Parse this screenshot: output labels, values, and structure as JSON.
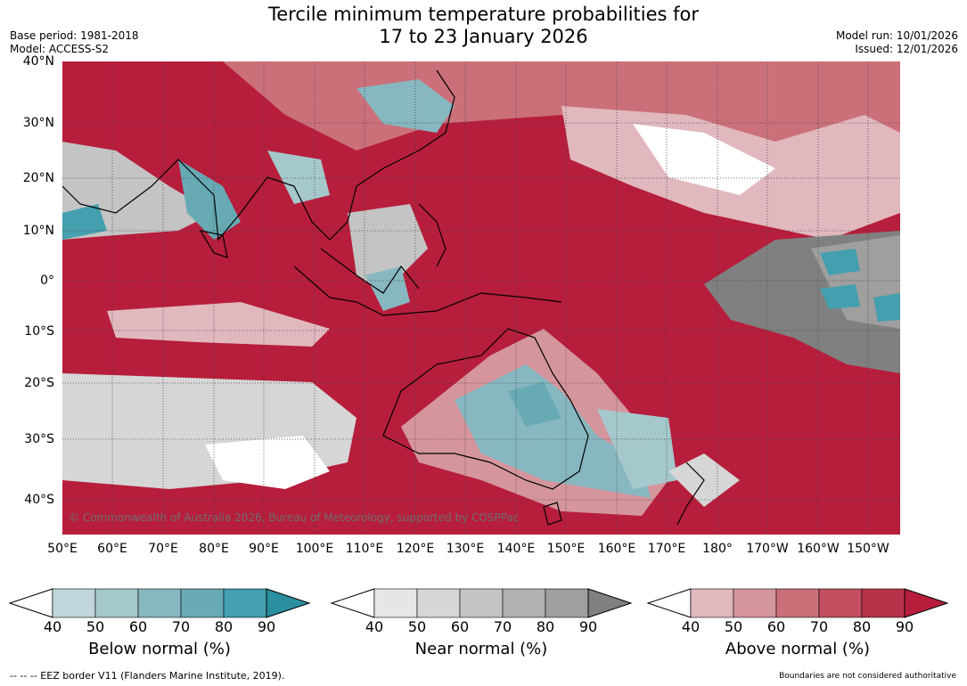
{
  "title_line1": "Tercile minimum temperature probabilities for",
  "title_line2": "17 to 23 January 2026",
  "base_period": "Base period: 1981-2018",
  "model": "Model: ACCESS-S2",
  "model_run": "Model run: 10/01/2026",
  "issued": "Issued: 12/01/2026",
  "copyright": "© Commonwealth of Australia 2026, Bureau of Meteorology, supported by COSPPac",
  "lat_labels": [
    "40°N",
    "30°N",
    "20°N",
    "10°N",
    "0°",
    "10°S",
    "20°S",
    "30°S",
    "40°S"
  ],
  "lon_labels": [
    "50°E",
    "60°E",
    "70°E",
    "80°E",
    "90°E",
    "100°E",
    "110°E",
    "120°E",
    "130°E",
    "140°E",
    "150°E",
    "160°E",
    "170°E",
    "180°",
    "170°W",
    "160°W",
    "150°W"
  ],
  "legends": [
    {
      "title": "Below normal (%)",
      "ticks": [
        "40",
        "50",
        "60",
        "70",
        "80",
        "90"
      ],
      "colors": [
        "#ffffff",
        "#c0d6dc",
        "#a5c8cd",
        "#87b7c0",
        "#67aab4",
        "#449fae",
        "#2a8f9f"
      ]
    },
    {
      "title": "Near normal (%)",
      "ticks": [
        "40",
        "50",
        "60",
        "70",
        "80",
        "90"
      ],
      "colors": [
        "#ffffff",
        "#e6e6e6",
        "#d6d6d6",
        "#c4c4c4",
        "#b1b1b1",
        "#9f9f9f",
        "#808080"
      ]
    },
    {
      "title": "Above normal (%)",
      "ticks": [
        "40",
        "50",
        "60",
        "70",
        "80",
        "90"
      ],
      "colors": [
        "#ffffff",
        "#e1b8be",
        "#d5959d",
        "#cb7079",
        "#c24f5e",
        "#b7334a",
        "#b71e3c"
      ]
    }
  ],
  "footer_left": "--  --  -- EEZ border V11 (Flanders Marine Institute, 2019).",
  "footer_right": "Boundaries are not considered authoritative"
}
